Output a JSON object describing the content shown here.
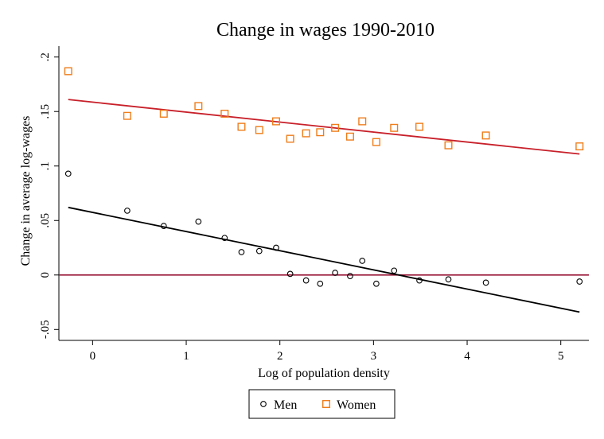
{
  "chart_data": {
    "type": "scatter",
    "title": "Change in wages 1990-2010",
    "xlabel": "Log of population density",
    "ylabel": "Change in average log-wages",
    "xlim": [
      -0.36,
      5.3
    ],
    "ylim": [
      -0.06,
      0.21
    ],
    "xticks": [
      0,
      1,
      2,
      3,
      4,
      5
    ],
    "xtick_labels": [
      "0",
      "1",
      "2",
      "3",
      "4",
      "5"
    ],
    "yticks": [
      -0.05,
      0,
      0.05,
      0.1,
      0.15,
      0.2
    ],
    "ytick_labels": [
      "-.05",
      "0",
      ".05",
      ".1",
      ".15",
      ".2"
    ],
    "grid": false,
    "legend_position": "bottom-center",
    "reference_line": {
      "y": 0,
      "color": "#9b1b3b"
    },
    "series": [
      {
        "name": "Men",
        "marker": "circle",
        "color": "#000000",
        "fit_color": "#000000",
        "points": [
          [
            -0.26,
            0.093
          ],
          [
            0.37,
            0.059
          ],
          [
            0.76,
            0.045
          ],
          [
            1.13,
            0.049
          ],
          [
            1.41,
            0.034
          ],
          [
            1.59,
            0.021
          ],
          [
            1.78,
            0.022
          ],
          [
            1.96,
            0.025
          ],
          [
            2.11,
            0.001
          ],
          [
            2.28,
            -0.005
          ],
          [
            2.43,
            -0.008
          ],
          [
            2.59,
            0.002
          ],
          [
            2.75,
            -0.001
          ],
          [
            2.88,
            0.013
          ],
          [
            3.03,
            -0.008
          ],
          [
            3.22,
            0.004
          ],
          [
            3.49,
            -0.005
          ],
          [
            3.8,
            -0.004
          ],
          [
            4.2,
            -0.007
          ],
          [
            5.2,
            -0.006
          ]
        ],
        "fit": [
          [
            -0.26,
            0.062
          ],
          [
            5.2,
            -0.034
          ]
        ]
      },
      {
        "name": "Women",
        "marker": "square",
        "color": "#ef7d1a",
        "fit_color": "#c8202a",
        "points": [
          [
            -0.26,
            0.187
          ],
          [
            0.37,
            0.146
          ],
          [
            0.76,
            0.148
          ],
          [
            1.13,
            0.155
          ],
          [
            1.41,
            0.148
          ],
          [
            1.59,
            0.136
          ],
          [
            1.78,
            0.133
          ],
          [
            1.96,
            0.141
          ],
          [
            2.11,
            0.125
          ],
          [
            2.28,
            0.13
          ],
          [
            2.43,
            0.131
          ],
          [
            2.59,
            0.135
          ],
          [
            2.75,
            0.127
          ],
          [
            2.88,
            0.141
          ],
          [
            3.03,
            0.122
          ],
          [
            3.22,
            0.135
          ],
          [
            3.49,
            0.136
          ],
          [
            3.8,
            0.119
          ],
          [
            4.2,
            0.128
          ],
          [
            5.2,
            0.118
          ]
        ],
        "fit": [
          [
            -0.26,
            0.161
          ],
          [
            5.2,
            0.111
          ]
        ]
      }
    ]
  }
}
